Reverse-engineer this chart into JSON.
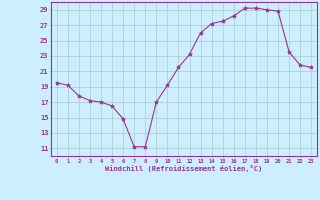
{
  "x": [
    0,
    1,
    2,
    3,
    4,
    5,
    6,
    7,
    8,
    9,
    10,
    11,
    12,
    13,
    14,
    15,
    16,
    17,
    18,
    19,
    20,
    21,
    22,
    23
  ],
  "y": [
    19.5,
    19.2,
    17.8,
    17.2,
    17.0,
    16.5,
    14.8,
    11.2,
    11.2,
    17.0,
    19.2,
    21.5,
    23.2,
    26.0,
    27.2,
    27.5,
    28.2,
    29.2,
    29.2,
    29.0,
    28.8,
    23.5,
    21.8,
    21.5
  ],
  "line_color": "#993399",
  "marker": "*",
  "marker_size": 3,
  "bg_color": "#cceeff",
  "grid_color": "#aacccc",
  "xlabel": "Windchill (Refroidissement éolien,°C)",
  "xlabel_color": "#993399",
  "tick_color": "#993399",
  "spine_color": "#993399",
  "ylim": [
    10,
    30
  ],
  "xlim": [
    -0.5,
    23.5
  ],
  "yticks": [
    11,
    13,
    15,
    17,
    19,
    21,
    23,
    25,
    27,
    29
  ],
  "xticks": [
    0,
    1,
    2,
    3,
    4,
    5,
    6,
    7,
    8,
    9,
    10,
    11,
    12,
    13,
    14,
    15,
    16,
    17,
    18,
    19,
    20,
    21,
    22,
    23
  ]
}
